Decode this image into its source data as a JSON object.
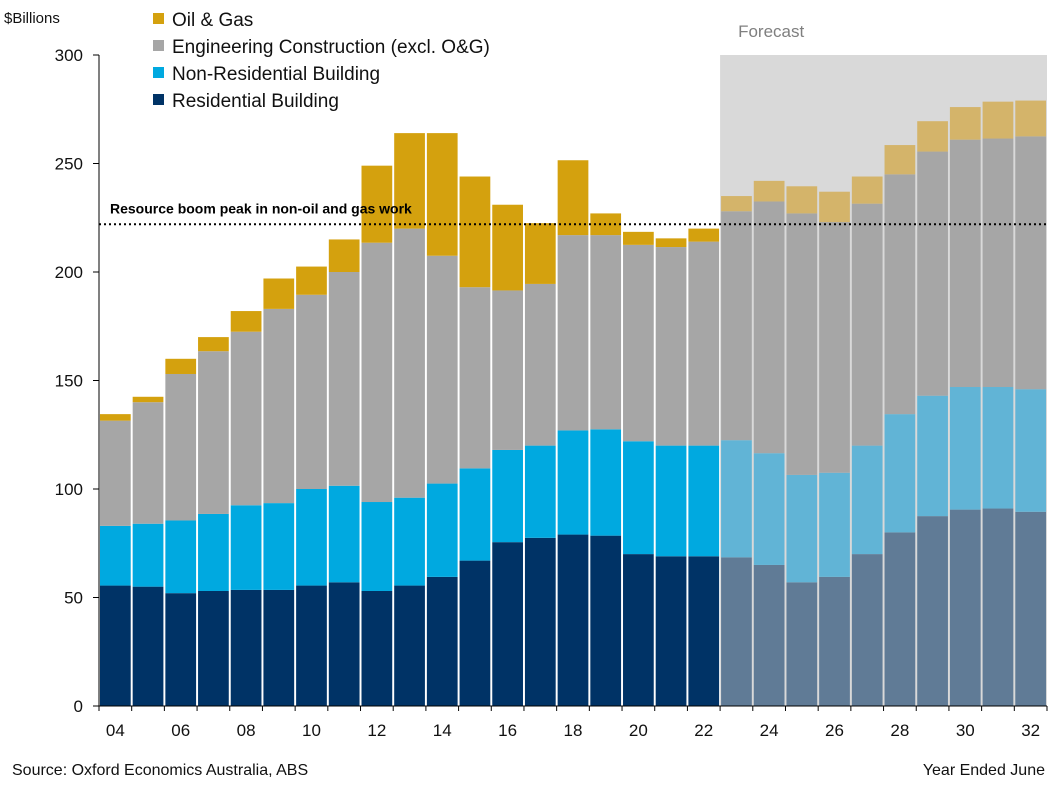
{
  "chart_data": {
    "type": "bar",
    "stacked": true,
    "y_unit_label": "$Billions",
    "ylim": [
      0,
      300
    ],
    "yticks": [
      0,
      50,
      100,
      150,
      200,
      250,
      300
    ],
    "grid": false,
    "legend_position": "top-left",
    "categories": [
      "04",
      "05",
      "06",
      "07",
      "08",
      "09",
      "10",
      "11",
      "12",
      "13",
      "14",
      "15",
      "16",
      "17",
      "18",
      "19",
      "20",
      "21",
      "22",
      "23",
      "24",
      "25",
      "26",
      "27",
      "28",
      "29",
      "30",
      "31",
      "32"
    ],
    "x_tick_labels": [
      "04",
      "06",
      "08",
      "10",
      "12",
      "14",
      "16",
      "18",
      "20",
      "22",
      "24",
      "26",
      "28",
      "30",
      "32"
    ],
    "forecast_start_index": 19,
    "forecast_label": "Forecast",
    "series": [
      {
        "name": "Residential Building",
        "color": "#003366",
        "forecast_color": "#607b96",
        "values": [
          55.5,
          55,
          52,
          53,
          53.5,
          53.5,
          55.5,
          57,
          53,
          55.5,
          59.5,
          67,
          75.5,
          77.5,
          79,
          78.5,
          70,
          69,
          69,
          68.5,
          65,
          57,
          59.5,
          70,
          80,
          87.5,
          90.5,
          91,
          89.5
        ]
      },
      {
        "name": "Non-Residential Building",
        "color": "#00a9e0",
        "forecast_color": "#61b4d6",
        "values": [
          27.5,
          29,
          33.5,
          35.5,
          39,
          40,
          44.5,
          44.5,
          41,
          40.5,
          43,
          42.5,
          42.5,
          42.5,
          48,
          49,
          52,
          51,
          51,
          54,
          51.5,
          49.5,
          48,
          50,
          54.5,
          55.5,
          56.5,
          56,
          56.5
        ]
      },
      {
        "name": "Engineering Construction (excl. O&G)",
        "color": "#a6a6a6",
        "forecast_color": "#a6a6a6",
        "values": [
          48.5,
          56,
          67.5,
          75,
          80,
          89.5,
          89.5,
          98.5,
          119.5,
          124,
          105,
          83.5,
          73.5,
          74.5,
          90,
          89.5,
          90.5,
          91.5,
          94,
          105.5,
          116,
          120.5,
          115.5,
          111.5,
          110.5,
          112.5,
          114,
          114.5,
          116.5
        ]
      },
      {
        "name": "Oil & Gas",
        "color": "#d4a10e",
        "forecast_color": "#d4b46a",
        "values": [
          3,
          2.5,
          7,
          6.5,
          9.5,
          14,
          13,
          15,
          35.5,
          44,
          56.5,
          51,
          39.5,
          28,
          34.5,
          10,
          6,
          4,
          6,
          7,
          9.5,
          12.5,
          14,
          12.5,
          13.5,
          14,
          15,
          17,
          16.5
        ]
      }
    ],
    "legend_order": [
      "Oil & Gas",
      "Engineering Construction (excl. O&G)",
      "Non-Residential Building",
      "Residential Building"
    ],
    "annotations": [
      {
        "text": "Resource boom peak in non-oil and gas work",
        "y": 222,
        "style": "dotted-line"
      }
    ],
    "source": "Source: Oxford Economics Australia, ABS",
    "xlabel": "Year Ended June",
    "forecast_bg_color": "#d9d9d9"
  }
}
